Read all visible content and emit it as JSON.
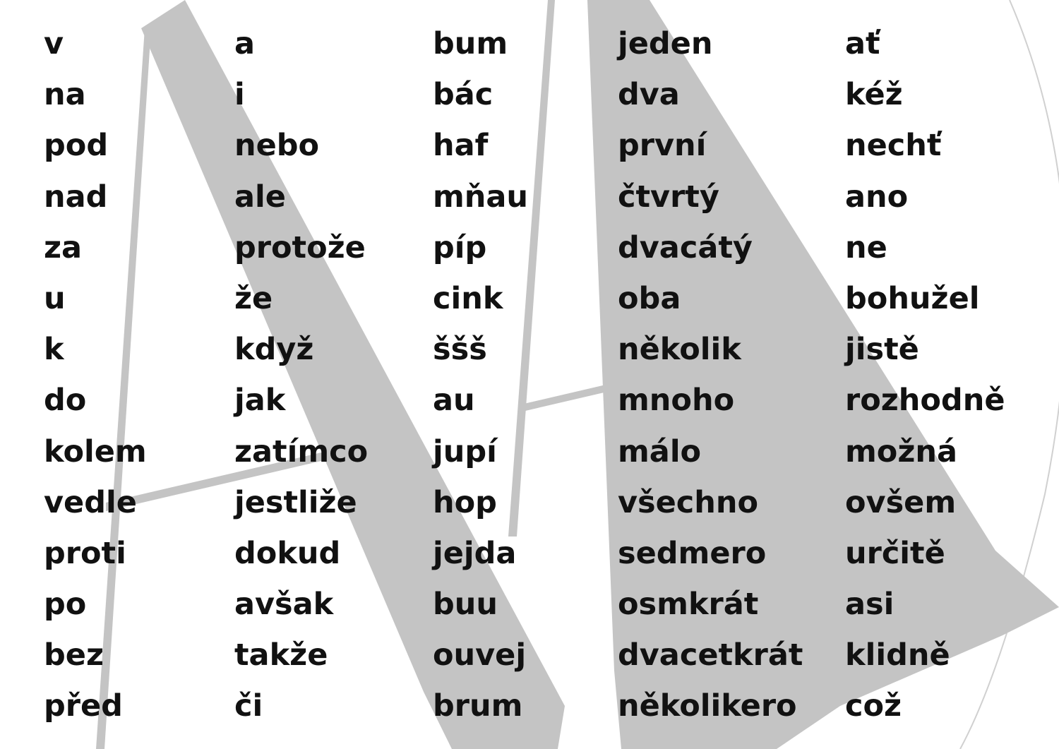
{
  "columns": [
    [
      "v",
      "na",
      "pod",
      "nad",
      "za",
      "u",
      "k",
      "do",
      "kolem",
      "vedle",
      "proti",
      "po",
      "bez",
      "před"
    ],
    [
      "a",
      "i",
      "nebo",
      "ale",
      "protože",
      "že",
      "když",
      "jak",
      "zatímco",
      "jestliže",
      "dokud",
      "avšak",
      "takže",
      "či"
    ],
    [
      "bum",
      "bác",
      "haf",
      "mňau",
      "píp",
      "cink",
      "ššš",
      "au",
      "jupí",
      "hop",
      "jejda",
      "buu",
      "ouvej",
      "brum"
    ],
    [
      "jeden",
      "dva",
      "první",
      "čtvrtý",
      "dvacátý",
      "oba",
      "několik",
      "mnoho",
      "málo",
      "všechno",
      "sedmero",
      "osmkrát",
      "dvacetkrát",
      "několikero"
    ],
    [
      "ať",
      "kéž",
      "nechť",
      "ano",
      "ne",
      "bohužel",
      "jistě",
      "rozhodně",
      "možná",
      "ovšem",
      "určitě",
      "asi",
      "klidně",
      "což"
    ]
  ],
  "colors": {
    "text": "#111111",
    "decoration": "#c4c4c4"
  }
}
